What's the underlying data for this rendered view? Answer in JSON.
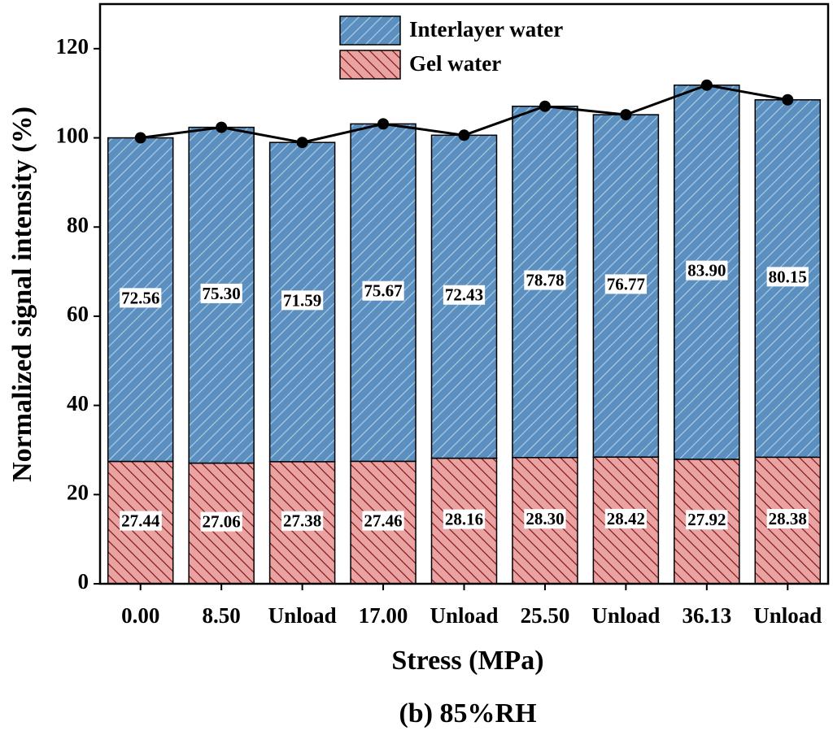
{
  "chart_data": {
    "type": "stacked_bar",
    "x_label": "Stress (MPa)",
    "y_label": "Normalized signal intensity (%)",
    "caption": "(b) 85%RH",
    "categories": [
      "0.00",
      "8.50",
      "Unload",
      "17.00",
      "Unload",
      "25.50",
      "Unload",
      "36.13",
      "Unload"
    ],
    "series": [
      {
        "name": "Interlayer water",
        "color": "#5b8fbf",
        "hatch_color": "#a9c6df",
        "values": [
          72.56,
          75.3,
          71.59,
          75.67,
          72.43,
          78.78,
          76.77,
          83.9,
          80.15
        ],
        "value_labels": [
          "72.56",
          "75.30",
          "71.59",
          "75.67",
          "72.43",
          "78.78",
          "76.77",
          "83.90",
          "80.15"
        ]
      },
      {
        "name": "Gel water",
        "color": "#e9a3a3",
        "hatch_color": "#8b1a1a",
        "values": [
          27.44,
          27.06,
          27.38,
          27.46,
          28.16,
          28.3,
          28.42,
          27.92,
          28.38
        ],
        "value_labels": [
          "27.44",
          "27.06",
          "27.38",
          "27.46",
          "28.16",
          "28.30",
          "28.42",
          "27.92",
          "28.38"
        ]
      }
    ],
    "line_color": "#000000",
    "ylim": [
      0,
      130
    ],
    "yticks": [
      0,
      20,
      40,
      60,
      80,
      100,
      120
    ]
  }
}
